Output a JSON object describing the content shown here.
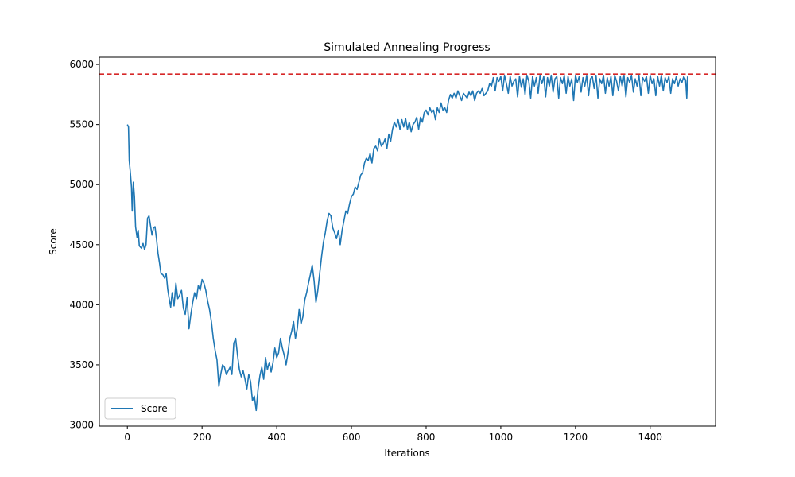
{
  "chart_data": {
    "type": "line",
    "title": "Simulated Annealing Progress",
    "xlabel": "Iterations",
    "ylabel": "Score",
    "xlim": [
      -75,
      1575
    ],
    "ylim": [
      2990,
      6060
    ],
    "xticks": [
      0,
      200,
      400,
      600,
      800,
      1000,
      1200,
      1400
    ],
    "yticks": [
      3000,
      3500,
      4000,
      4500,
      5000,
      5500,
      6000
    ],
    "grid": false,
    "legend": {
      "position": "lower-left",
      "entries": [
        "Score"
      ]
    },
    "series": [
      {
        "name": "Score",
        "color": "#1f77b4",
        "points": [
          [
            0,
            5500
          ],
          [
            3,
            5480
          ],
          [
            5,
            5200
          ],
          [
            8,
            5100
          ],
          [
            11,
            4980
          ],
          [
            13,
            4780
          ],
          [
            16,
            5020
          ],
          [
            19,
            4900
          ],
          [
            22,
            4650
          ],
          [
            26,
            4560
          ],
          [
            29,
            4620
          ],
          [
            32,
            4490
          ],
          [
            38,
            4470
          ],
          [
            42,
            4510
          ],
          [
            46,
            4460
          ],
          [
            50,
            4500
          ],
          [
            54,
            4720
          ],
          [
            58,
            4740
          ],
          [
            62,
            4660
          ],
          [
            66,
            4580
          ],
          [
            70,
            4640
          ],
          [
            74,
            4650
          ],
          [
            78,
            4550
          ],
          [
            82,
            4430
          ],
          [
            86,
            4350
          ],
          [
            90,
            4260
          ],
          [
            95,
            4250
          ],
          [
            100,
            4220
          ],
          [
            104,
            4260
          ],
          [
            108,
            4130
          ],
          [
            112,
            4050
          ],
          [
            116,
            3980
          ],
          [
            120,
            4100
          ],
          [
            125,
            3990
          ],
          [
            130,
            4180
          ],
          [
            135,
            4050
          ],
          [
            140,
            4080
          ],
          [
            145,
            4120
          ],
          [
            150,
            3970
          ],
          [
            155,
            3920
          ],
          [
            160,
            4060
          ],
          [
            165,
            3800
          ],
          [
            170,
            3920
          ],
          [
            175,
            4020
          ],
          [
            180,
            4100
          ],
          [
            185,
            4050
          ],
          [
            190,
            4160
          ],
          [
            195,
            4120
          ],
          [
            200,
            4210
          ],
          [
            205,
            4180
          ],
          [
            210,
            4120
          ],
          [
            215,
            4030
          ],
          [
            220,
            3960
          ],
          [
            225,
            3860
          ],
          [
            230,
            3720
          ],
          [
            235,
            3620
          ],
          [
            240,
            3540
          ],
          [
            245,
            3320
          ],
          [
            250,
            3420
          ],
          [
            255,
            3500
          ],
          [
            260,
            3480
          ],
          [
            265,
            3420
          ],
          [
            270,
            3450
          ],
          [
            275,
            3480
          ],
          [
            280,
            3420
          ],
          [
            285,
            3680
          ],
          [
            290,
            3720
          ],
          [
            295,
            3580
          ],
          [
            300,
            3460
          ],
          [
            305,
            3400
          ],
          [
            310,
            3450
          ],
          [
            315,
            3380
          ],
          [
            320,
            3300
          ],
          [
            325,
            3420
          ],
          [
            330,
            3360
          ],
          [
            335,
            3200
          ],
          [
            340,
            3240
          ],
          [
            345,
            3120
          ],
          [
            350,
            3300
          ],
          [
            355,
            3410
          ],
          [
            360,
            3480
          ],
          [
            365,
            3380
          ],
          [
            370,
            3560
          ],
          [
            375,
            3460
          ],
          [
            380,
            3520
          ],
          [
            385,
            3440
          ],
          [
            390,
            3520
          ],
          [
            395,
            3640
          ],
          [
            400,
            3560
          ],
          [
            405,
            3600
          ],
          [
            410,
            3720
          ],
          [
            415,
            3640
          ],
          [
            420,
            3580
          ],
          [
            425,
            3500
          ],
          [
            430,
            3600
          ],
          [
            435,
            3720
          ],
          [
            440,
            3780
          ],
          [
            445,
            3860
          ],
          [
            450,
            3720
          ],
          [
            455,
            3800
          ],
          [
            460,
            3960
          ],
          [
            465,
            3840
          ],
          [
            470,
            3900
          ],
          [
            475,
            4040
          ],
          [
            480,
            4100
          ],
          [
            485,
            4180
          ],
          [
            490,
            4250
          ],
          [
            495,
            4330
          ],
          [
            500,
            4200
          ],
          [
            505,
            4020
          ],
          [
            510,
            4120
          ],
          [
            515,
            4260
          ],
          [
            520,
            4400
          ],
          [
            525,
            4520
          ],
          [
            530,
            4600
          ],
          [
            535,
            4700
          ],
          [
            540,
            4760
          ],
          [
            545,
            4740
          ],
          [
            550,
            4640
          ],
          [
            555,
            4600
          ],
          [
            560,
            4550
          ],
          [
            565,
            4620
          ],
          [
            570,
            4500
          ],
          [
            575,
            4620
          ],
          [
            580,
            4700
          ],
          [
            585,
            4780
          ],
          [
            590,
            4760
          ],
          [
            595,
            4840
          ],
          [
            600,
            4900
          ],
          [
            605,
            4920
          ],
          [
            610,
            4980
          ],
          [
            615,
            4960
          ],
          [
            620,
            5020
          ],
          [
            625,
            5080
          ],
          [
            630,
            5100
          ],
          [
            635,
            5180
          ],
          [
            640,
            5220
          ],
          [
            645,
            5200
          ],
          [
            650,
            5260
          ],
          [
            655,
            5180
          ],
          [
            660,
            5300
          ],
          [
            665,
            5320
          ],
          [
            670,
            5280
          ],
          [
            675,
            5380
          ],
          [
            680,
            5320
          ],
          [
            685,
            5340
          ],
          [
            690,
            5380
          ],
          [
            695,
            5300
          ],
          [
            700,
            5420
          ],
          [
            705,
            5360
          ],
          [
            710,
            5460
          ],
          [
            715,
            5520
          ],
          [
            720,
            5480
          ],
          [
            725,
            5540
          ],
          [
            730,
            5460
          ],
          [
            735,
            5540
          ],
          [
            740,
            5480
          ],
          [
            745,
            5550
          ],
          [
            750,
            5460
          ],
          [
            755,
            5520
          ],
          [
            760,
            5440
          ],
          [
            765,
            5500
          ],
          [
            770,
            5520
          ],
          [
            775,
            5560
          ],
          [
            780,
            5460
          ],
          [
            785,
            5560
          ],
          [
            790,
            5520
          ],
          [
            795,
            5600
          ],
          [
            800,
            5620
          ],
          [
            805,
            5580
          ],
          [
            810,
            5640
          ],
          [
            815,
            5600
          ],
          [
            820,
            5620
          ],
          [
            825,
            5540
          ],
          [
            830,
            5640
          ],
          [
            835,
            5600
          ],
          [
            840,
            5680
          ],
          [
            845,
            5620
          ],
          [
            850,
            5640
          ],
          [
            855,
            5600
          ],
          [
            860,
            5700
          ],
          [
            865,
            5750
          ],
          [
            870,
            5720
          ],
          [
            875,
            5760
          ],
          [
            880,
            5720
          ],
          [
            885,
            5780
          ],
          [
            890,
            5740
          ],
          [
            895,
            5700
          ],
          [
            900,
            5760
          ],
          [
            905,
            5740
          ],
          [
            910,
            5720
          ],
          [
            915,
            5770
          ],
          [
            920,
            5740
          ],
          [
            925,
            5780
          ],
          [
            930,
            5700
          ],
          [
            935,
            5760
          ],
          [
            940,
            5780
          ],
          [
            945,
            5760
          ],
          [
            950,
            5800
          ],
          [
            955,
            5740
          ],
          [
            960,
            5760
          ],
          [
            965,
            5780
          ],
          [
            970,
            5840
          ],
          [
            975,
            5820
          ],
          [
            980,
            5890
          ],
          [
            985,
            5780
          ],
          [
            990,
            5890
          ],
          [
            995,
            5860
          ],
          [
            1000,
            5900
          ],
          [
            1005,
            5780
          ],
          [
            1010,
            5910
          ],
          [
            1015,
            5840
          ],
          [
            1020,
            5760
          ],
          [
            1025,
            5900
          ],
          [
            1030,
            5820
          ],
          [
            1035,
            5860
          ],
          [
            1040,
            5880
          ],
          [
            1045,
            5730
          ],
          [
            1050,
            5900
          ],
          [
            1055,
            5810
          ],
          [
            1060,
            5880
          ],
          [
            1065,
            5750
          ],
          [
            1070,
            5910
          ],
          [
            1075,
            5860
          ],
          [
            1080,
            5720
          ],
          [
            1085,
            5900
          ],
          [
            1090,
            5820
          ],
          [
            1095,
            5890
          ],
          [
            1100,
            5760
          ],
          [
            1105,
            5910
          ],
          [
            1110,
            5840
          ],
          [
            1115,
            5900
          ],
          [
            1120,
            5730
          ],
          [
            1125,
            5890
          ],
          [
            1130,
            5820
          ],
          [
            1135,
            5910
          ],
          [
            1140,
            5770
          ],
          [
            1145,
            5880
          ],
          [
            1150,
            5900
          ],
          [
            1155,
            5720
          ],
          [
            1160,
            5890
          ],
          [
            1165,
            5840
          ],
          [
            1170,
            5910
          ],
          [
            1175,
            5760
          ],
          [
            1180,
            5900
          ],
          [
            1185,
            5820
          ],
          [
            1190,
            5880
          ],
          [
            1195,
            5700
          ],
          [
            1200,
            5910
          ],
          [
            1205,
            5850
          ],
          [
            1210,
            5900
          ],
          [
            1215,
            5770
          ],
          [
            1220,
            5890
          ],
          [
            1225,
            5820
          ],
          [
            1230,
            5910
          ],
          [
            1235,
            5740
          ],
          [
            1240,
            5880
          ],
          [
            1245,
            5900
          ],
          [
            1250,
            5800
          ],
          [
            1255,
            5910
          ],
          [
            1260,
            5720
          ],
          [
            1265,
            5880
          ],
          [
            1270,
            5840
          ],
          [
            1275,
            5910
          ],
          [
            1280,
            5760
          ],
          [
            1285,
            5890
          ],
          [
            1290,
            5820
          ],
          [
            1295,
            5900
          ],
          [
            1300,
            5740
          ],
          [
            1305,
            5910
          ],
          [
            1310,
            5860
          ],
          [
            1315,
            5780
          ],
          [
            1320,
            5900
          ],
          [
            1325,
            5820
          ],
          [
            1330,
            5910
          ],
          [
            1335,
            5730
          ],
          [
            1340,
            5890
          ],
          [
            1345,
            5850
          ],
          [
            1350,
            5910
          ],
          [
            1355,
            5770
          ],
          [
            1360,
            5880
          ],
          [
            1365,
            5820
          ],
          [
            1370,
            5910
          ],
          [
            1375,
            5740
          ],
          [
            1380,
            5890
          ],
          [
            1385,
            5860
          ],
          [
            1390,
            5900
          ],
          [
            1395,
            5760
          ],
          [
            1400,
            5910
          ],
          [
            1405,
            5840
          ],
          [
            1410,
            5880
          ],
          [
            1415,
            5740
          ],
          [
            1420,
            5900
          ],
          [
            1425,
            5820
          ],
          [
            1430,
            5910
          ],
          [
            1435,
            5780
          ],
          [
            1440,
            5890
          ],
          [
            1445,
            5850
          ],
          [
            1450,
            5900
          ],
          [
            1455,
            5760
          ],
          [
            1460,
            5880
          ],
          [
            1465,
            5840
          ],
          [
            1470,
            5900
          ],
          [
            1475,
            5820
          ],
          [
            1480,
            5880
          ],
          [
            1485,
            5850
          ],
          [
            1490,
            5900
          ],
          [
            1495,
            5870
          ],
          [
            1498,
            5720
          ],
          [
            1500,
            5900
          ]
        ]
      }
    ],
    "reference_line": {
      "y": 5920,
      "color": "#d62728",
      "style": "dashed"
    }
  }
}
